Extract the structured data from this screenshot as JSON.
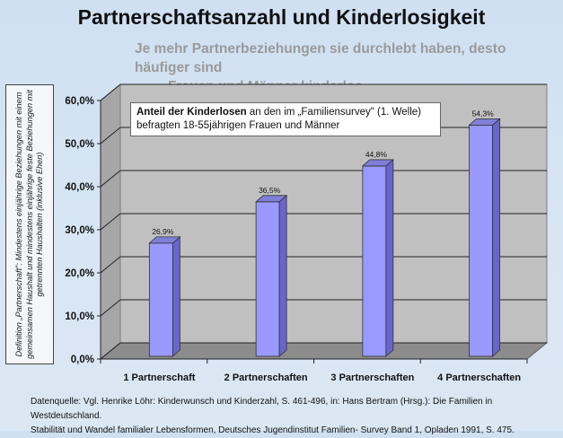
{
  "title": "Partnerschaftsanzahl und Kinderlosigkeit",
  "subtitle_line1": "Je mehr Partnerbeziehungen sie durchlebt haben, desto häufiger sind",
  "subtitle_line2": "Frauen und Männer kinderlos",
  "side_note": "Definition „Partnerschaft\": Mindestens einjährige Beziehungen mit einem gemeinsamen Haushalt und mindestens einjährige feste Beziehungen mit getrennten Haushalten (inklusive Ehen)",
  "legend": {
    "bold": "Anteil der Kinderlosen",
    "rest": " an den im „Familiensurvey\" (1. Welle) befragten 18-55jährigen Frauen und Männer"
  },
  "source_line1": "Datenquelle: Vgl. Henrike Löhr: Kinderwunsch und Kinderzahl, S. 461-496, in: Hans Bertram (Hrsg.): Die Familien in Westdeutschland.",
  "source_line2": "Stabilität und Wandel familialer Lebensformen, Deutsches Jugendinstitut Familien- Survey Band 1, Opladen 1991, S. 475.",
  "chart_data": {
    "type": "bar",
    "categories": [
      "1 Partnerschaft",
      "2 Partnerschaften",
      "3 Partnerschaften",
      "4 Partnerschaften"
    ],
    "values": [
      26.9,
      36.5,
      44.8,
      54.3
    ],
    "value_labels": [
      "26,9%",
      "36,5%",
      "44,8%",
      "54,3%"
    ],
    "yticks": [
      "0,0%",
      "10,0%",
      "20,0%",
      "30,0%",
      "40,0%",
      "50,0%",
      "60,0%"
    ],
    "ylim": [
      0,
      60
    ],
    "grid": true,
    "colors": {
      "bar_front": "#9999ff",
      "bar_side": "#6666cc",
      "bar_top": "#7f7fd9",
      "wall": "#c0c0c0",
      "floor": "#8c8c8c"
    }
  }
}
